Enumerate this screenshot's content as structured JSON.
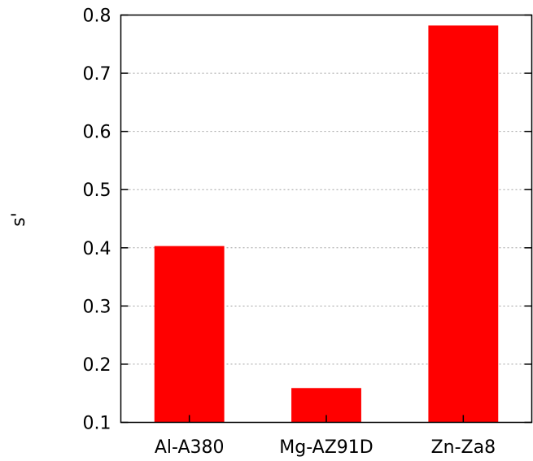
{
  "chart_data": {
    "type": "bar",
    "title": "",
    "xlabel": "",
    "ylabel": "s'",
    "categories": [
      "Al-A380",
      "Mg-AZ91D",
      "Zn-Za8"
    ],
    "values": [
      0.403,
      0.159,
      0.782
    ],
    "ylim": [
      0.1,
      0.8
    ],
    "yticks": [
      0.1,
      0.2,
      0.3,
      0.4,
      0.5,
      0.6,
      0.7,
      0.8
    ],
    "ytick_labels": [
      "0.1",
      "0.2",
      "0.3",
      "0.4",
      "0.5",
      "0.6",
      "0.7",
      "0.8"
    ],
    "grid": "horizontal dotted",
    "legend": "none",
    "colors": {
      "bar": "#ff0000",
      "grid": "#a0a0a0",
      "axis": "#000000"
    }
  }
}
